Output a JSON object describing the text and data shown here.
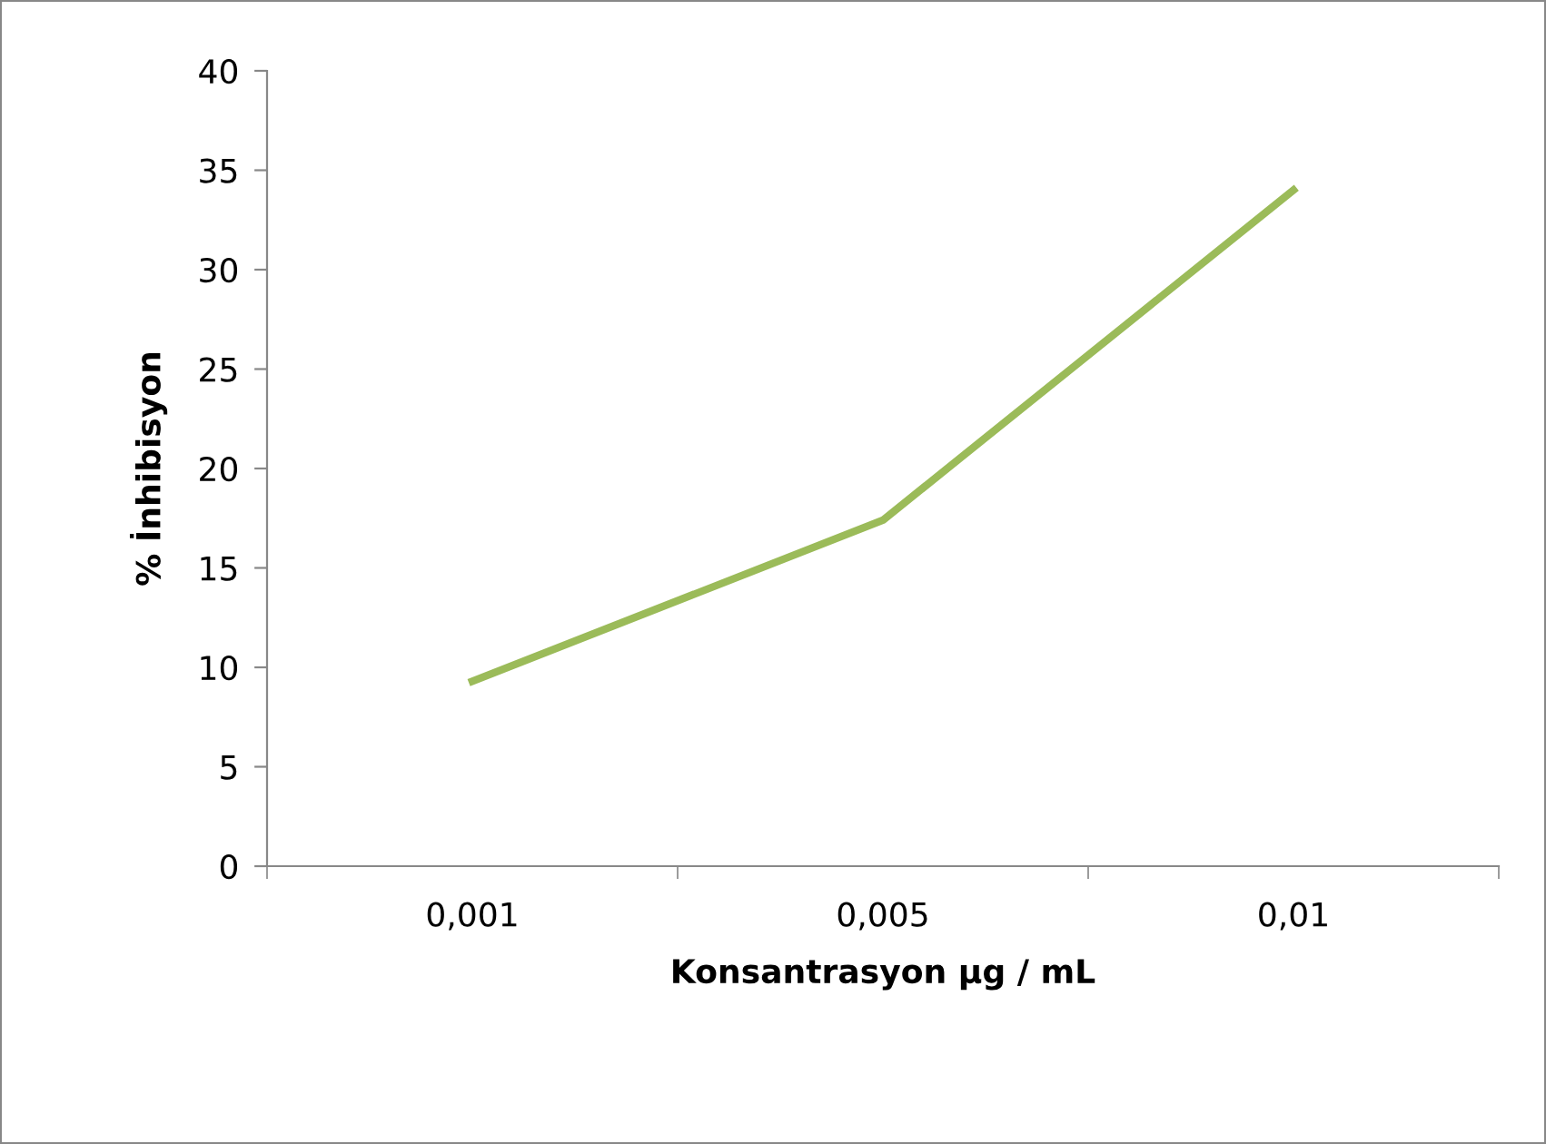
{
  "chart_data": {
    "type": "line",
    "xlabel": "Konsantrasyon µg / mL",
    "ylabel": "% İnhibisyon",
    "categories": [
      "0,001",
      "0,005",
      "0,01"
    ],
    "series": [
      {
        "color": "#9bbb59",
        "values": [
          9.3,
          17.4,
          34
        ]
      }
    ],
    "ylim": [
      0,
      40
    ],
    "yticks": [
      0,
      5,
      10,
      15,
      20,
      25,
      30,
      35,
      40
    ],
    "grid": false,
    "legend": false,
    "marker": "none",
    "line_style": "solid"
  }
}
